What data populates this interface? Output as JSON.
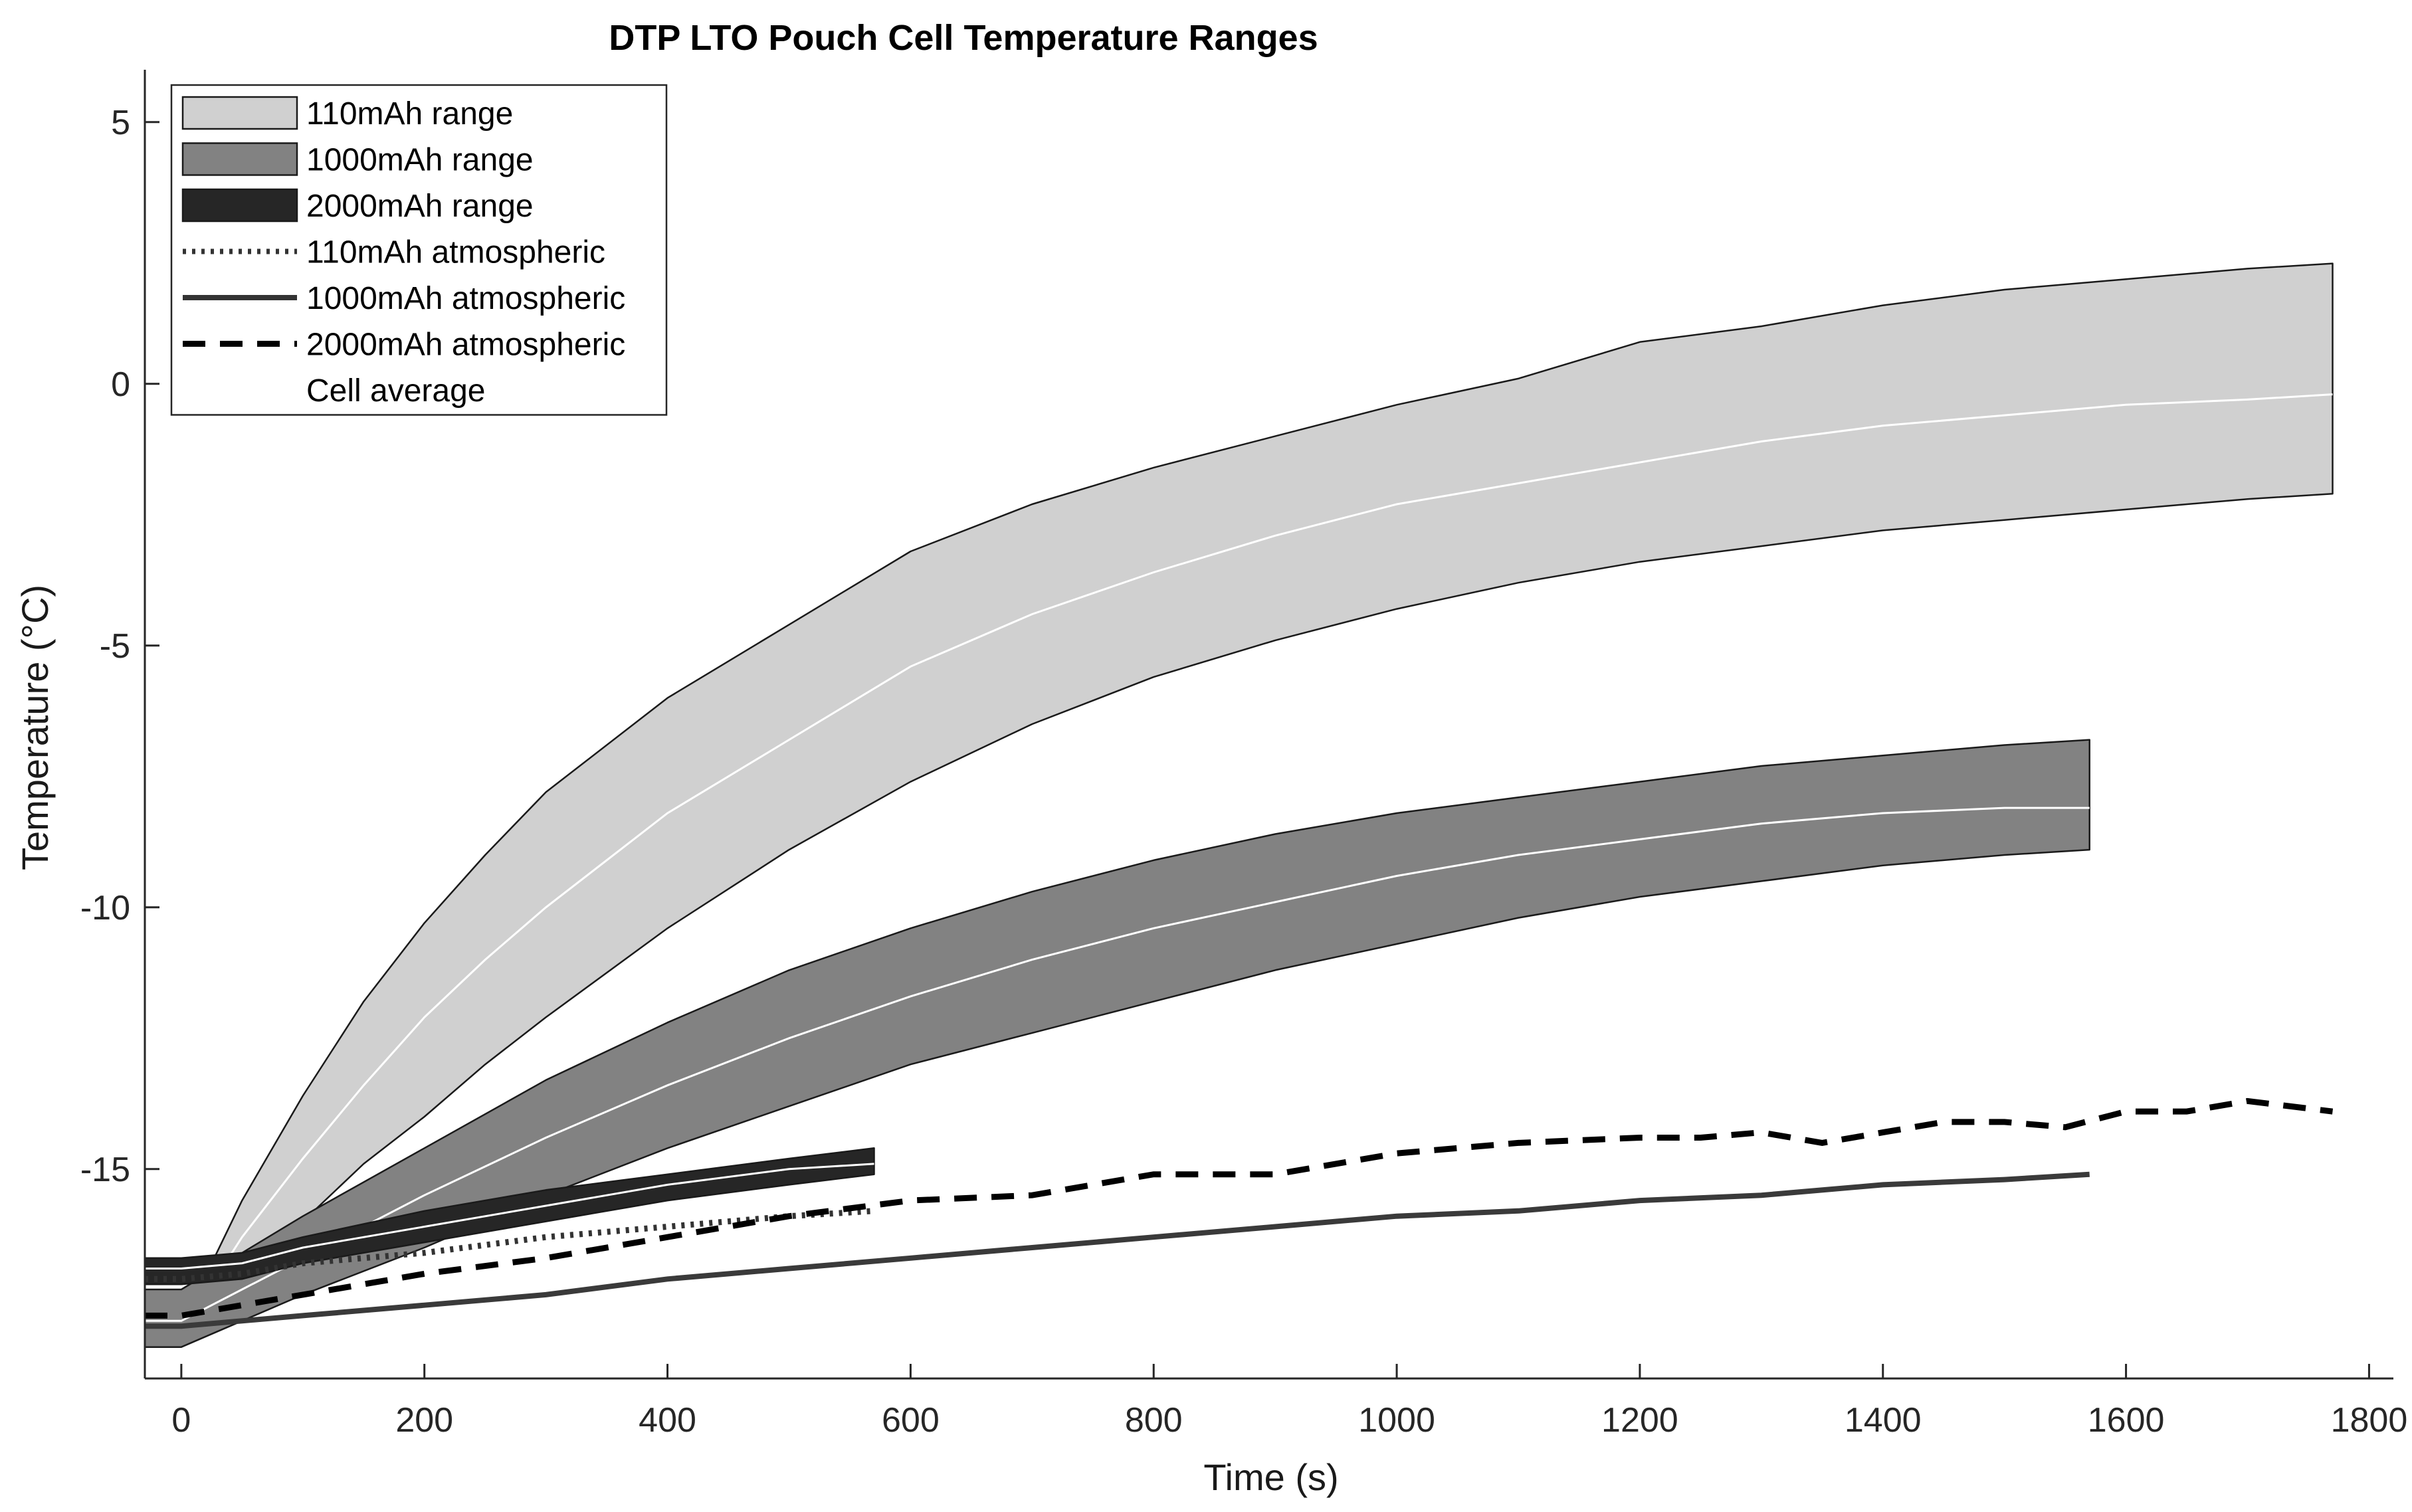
{
  "chart_data": {
    "type": "area",
    "title": "DTP LTO Pouch Cell Temperature Ranges",
    "xlabel": "Time (s)",
    "ylabel": "Temperature (°C)",
    "xlim": [
      -30,
      1820
    ],
    "ylim": [
      -19,
      6
    ],
    "xticks": [
      0,
      200,
      400,
      600,
      800,
      1000,
      1200,
      1400,
      1600,
      1800
    ],
    "yticks": [
      5,
      0,
      -5,
      -10,
      -15
    ],
    "xtick_labels": [
      "0",
      "200",
      "400",
      "600",
      "800",
      "1000",
      "1200",
      "1400",
      "1600",
      "1800"
    ],
    "ytick_labels": [
      "5",
      "0",
      "-5",
      "-10",
      "-15"
    ],
    "grid": false,
    "legend_position": "top-left",
    "legend": [
      {
        "label": "110mAh range",
        "style": "fill",
        "color": "#d0d0d0"
      },
      {
        "label": "1000mAh range",
        "style": "fill",
        "color": "#828282"
      },
      {
        "label": "2000mAh range",
        "style": "fill",
        "color": "#262626"
      },
      {
        "label": "110mAh atmospheric",
        "style": "dotted",
        "color": "#333333"
      },
      {
        "label": "1000mAh atmospheric",
        "style": "solid",
        "color": "#333333"
      },
      {
        "label": "2000mAh atmospheric",
        "style": "dashed",
        "color": "#000000"
      },
      {
        "label": "Cell average",
        "style": "solid",
        "color": "#ffffff"
      }
    ],
    "series": [
      {
        "name": "110mAh range",
        "kind": "band",
        "color": "#d0d0d0",
        "x": [
          0,
          25,
          50,
          100,
          150,
          200,
          250,
          300,
          400,
          500,
          600,
          700,
          800,
          900,
          1000,
          1100,
          1200,
          1300,
          1400,
          1500,
          1600,
          1700,
          1770
        ],
        "upper": [
          -18.0,
          -16.8,
          -15.6,
          -13.6,
          -11.8,
          -10.3,
          -9.0,
          -7.8,
          -6.0,
          -4.6,
          -3.2,
          -2.3,
          -1.6,
          -1.0,
          -0.4,
          0.1,
          0.8,
          1.1,
          1.5,
          1.8,
          2.0,
          2.2,
          2.3
        ],
        "lower": [
          -18.1,
          -17.5,
          -17.0,
          -16.0,
          -14.9,
          -14.0,
          -13.0,
          -12.1,
          -10.4,
          -8.9,
          -7.6,
          -6.5,
          -5.6,
          -4.9,
          -4.3,
          -3.8,
          -3.4,
          -3.1,
          -2.8,
          -2.6,
          -2.4,
          -2.2,
          -2.1
        ],
        "average": [
          -18.0,
          -17.2,
          -16.3,
          -14.8,
          -13.4,
          -12.1,
          -11.0,
          -10.0,
          -8.2,
          -6.8,
          -5.4,
          -4.4,
          -3.6,
          -2.9,
          -2.3,
          -1.9,
          -1.5,
          -1.1,
          -0.8,
          -0.6,
          -0.4,
          -0.3,
          -0.2
        ]
      },
      {
        "name": "1000mAh range",
        "kind": "band",
        "color": "#828282",
        "x": [
          -30,
          0,
          50,
          100,
          200,
          300,
          400,
          500,
          600,
          700,
          800,
          900,
          1000,
          1100,
          1200,
          1300,
          1400,
          1500,
          1570
        ],
        "upper": [
          -17.3,
          -17.3,
          -16.6,
          -15.9,
          -14.6,
          -13.3,
          -12.2,
          -11.2,
          -10.4,
          -9.7,
          -9.1,
          -8.6,
          -8.2,
          -7.9,
          -7.6,
          -7.3,
          -7.1,
          -6.9,
          -6.8
        ],
        "lower": [
          -18.4,
          -18.4,
          -17.9,
          -17.4,
          -16.5,
          -15.5,
          -14.6,
          -13.8,
          -13.0,
          -12.4,
          -11.8,
          -11.2,
          -10.7,
          -10.2,
          -9.8,
          -9.5,
          -9.2,
          -9.0,
          -8.9
        ],
        "average": [
          -17.9,
          -17.9,
          -17.3,
          -16.7,
          -15.5,
          -14.4,
          -13.4,
          -12.5,
          -11.7,
          -11.0,
          -10.4,
          -9.9,
          -9.4,
          -9.0,
          -8.7,
          -8.4,
          -8.2,
          -8.1,
          -8.1
        ]
      },
      {
        "name": "2000mAh range",
        "kind": "band",
        "color": "#262626",
        "x": [
          -30,
          0,
          50,
          100,
          200,
          300,
          400,
          500,
          570
        ],
        "upper": [
          -16.7,
          -16.7,
          -16.6,
          -16.3,
          -15.8,
          -15.4,
          -15.1,
          -14.8,
          -14.6
        ],
        "lower": [
          -17.2,
          -17.2,
          -17.1,
          -16.8,
          -16.4,
          -16.0,
          -15.6,
          -15.3,
          -15.1
        ],
        "average": [
          -16.9,
          -16.9,
          -16.8,
          -16.5,
          -16.1,
          -15.7,
          -15.3,
          -15.0,
          -14.9
        ]
      },
      {
        "name": "110mAh atmospheric",
        "kind": "dotted",
        "color": "#333333",
        "x": [
          -30,
          0,
          50,
          100,
          200,
          300,
          400,
          500,
          570
        ],
        "y": [
          -17.1,
          -17.1,
          -17.0,
          -16.8,
          -16.6,
          -16.3,
          -16.1,
          -15.9,
          -15.8
        ]
      },
      {
        "name": "1000mAh atmospheric",
        "kind": "solid",
        "color": "#3a3a3a",
        "x": [
          -30,
          0,
          100,
          200,
          300,
          400,
          500,
          600,
          700,
          800,
          900,
          1000,
          1100,
          1200,
          1300,
          1400,
          1500,
          1570
        ],
        "y": [
          -18.0,
          -18.0,
          -17.8,
          -17.6,
          -17.4,
          -17.1,
          -16.9,
          -16.7,
          -16.5,
          -16.3,
          -16.1,
          -15.9,
          -15.8,
          -15.6,
          -15.5,
          -15.3,
          -15.2,
          -15.1
        ]
      },
      {
        "name": "2000mAh atmospheric",
        "kind": "dashed",
        "color": "#000000",
        "x": [
          -30,
          0,
          50,
          100,
          200,
          300,
          400,
          500,
          600,
          700,
          800,
          900,
          1000,
          1100,
          1200,
          1250,
          1300,
          1350,
          1400,
          1450,
          1500,
          1550,
          1600,
          1650,
          1700,
          1770
        ],
        "y": [
          -17.8,
          -17.8,
          -17.6,
          -17.4,
          -17.0,
          -16.7,
          -16.3,
          -15.9,
          -15.6,
          -15.5,
          -15.1,
          -15.1,
          -14.7,
          -14.5,
          -14.4,
          -14.4,
          -14.3,
          -14.5,
          -14.3,
          -14.1,
          -14.1,
          -14.2,
          -13.9,
          -13.9,
          -13.7,
          -13.9
        ]
      }
    ]
  }
}
